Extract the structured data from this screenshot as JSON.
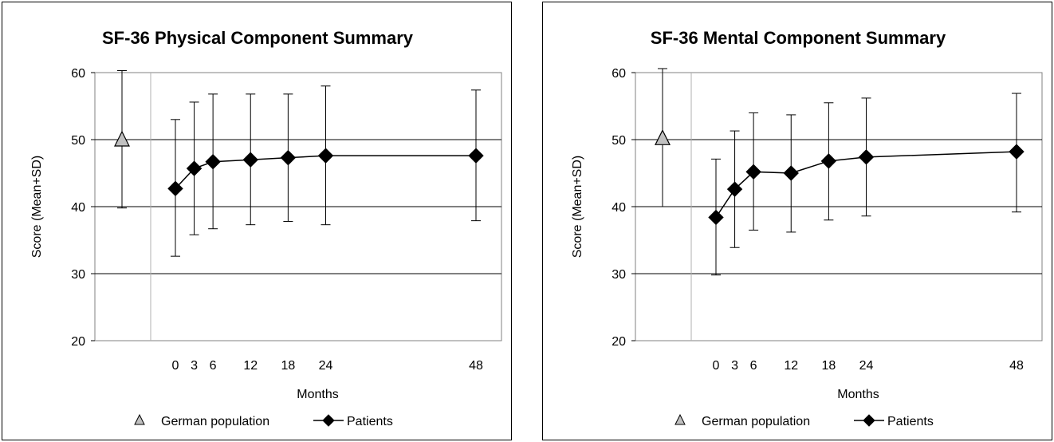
{
  "chart_data": [
    {
      "type": "line",
      "title": "SF-36 Physical Component Summary",
      "xlabel": "Months",
      "ylabel": "Score (Mean+SD)",
      "ylim": [
        20,
        60
      ],
      "yticks": [
        20,
        30,
        40,
        50,
        60
      ],
      "xticks": [
        0,
        3,
        6,
        12,
        18,
        24,
        48
      ],
      "grid": true,
      "legend": "bottom",
      "series": [
        {
          "name": "German population",
          "marker": "triangle",
          "color": "#c0c0c0",
          "points": [
            {
              "x": null,
              "y": 50,
              "low": 39.8,
              "high": 60.3
            }
          ]
        },
        {
          "name": "Patients",
          "marker": "diamond",
          "color": "#000000",
          "points": [
            {
              "x": 0,
              "y": 42.7,
              "low": 32.6,
              "high": 53.0
            },
            {
              "x": 3,
              "y": 45.7,
              "low": 35.8,
              "high": 55.6
            },
            {
              "x": 6,
              "y": 46.7,
              "low": 36.7,
              "high": 56.8
            },
            {
              "x": 12,
              "y": 47.0,
              "low": 37.3,
              "high": 56.8
            },
            {
              "x": 18,
              "y": 47.3,
              "low": 37.8,
              "high": 56.8
            },
            {
              "x": 24,
              "y": 47.6,
              "low": 37.3,
              "high": 58.0
            },
            {
              "x": 48,
              "y": 47.6,
              "low": 37.9,
              "high": 57.4
            }
          ]
        }
      ]
    },
    {
      "type": "line",
      "title": "SF-36 Mental Component Summary",
      "xlabel": "Months",
      "ylabel": "Score (Mean+SD)",
      "ylim": [
        20,
        60
      ],
      "yticks": [
        20,
        30,
        40,
        50,
        60
      ],
      "xticks": [
        0,
        3,
        6,
        12,
        18,
        24,
        48
      ],
      "grid": true,
      "legend": "bottom",
      "series": [
        {
          "name": "German population",
          "marker": "triangle",
          "color": "#c0c0c0",
          "points": [
            {
              "x": null,
              "y": 50.2,
              "low": 40.0,
              "high": 60.6
            }
          ]
        },
        {
          "name": "Patients",
          "marker": "diamond",
          "color": "#000000",
          "points": [
            {
              "x": 0,
              "y": 38.4,
              "low": 29.8,
              "high": 47.1
            },
            {
              "x": 3,
              "y": 42.6,
              "low": 33.9,
              "high": 51.3
            },
            {
              "x": 6,
              "y": 45.2,
              "low": 36.5,
              "high": 54.0
            },
            {
              "x": 12,
              "y": 45.0,
              "low": 36.2,
              "high": 53.7
            },
            {
              "x": 18,
              "y": 46.8,
              "low": 38.0,
              "high": 55.5
            },
            {
              "x": 24,
              "y": 47.4,
              "low": 38.6,
              "high": 56.2
            },
            {
              "x": 48,
              "y": 48.2,
              "low": 39.2,
              "high": 56.9
            }
          ]
        }
      ]
    }
  ]
}
